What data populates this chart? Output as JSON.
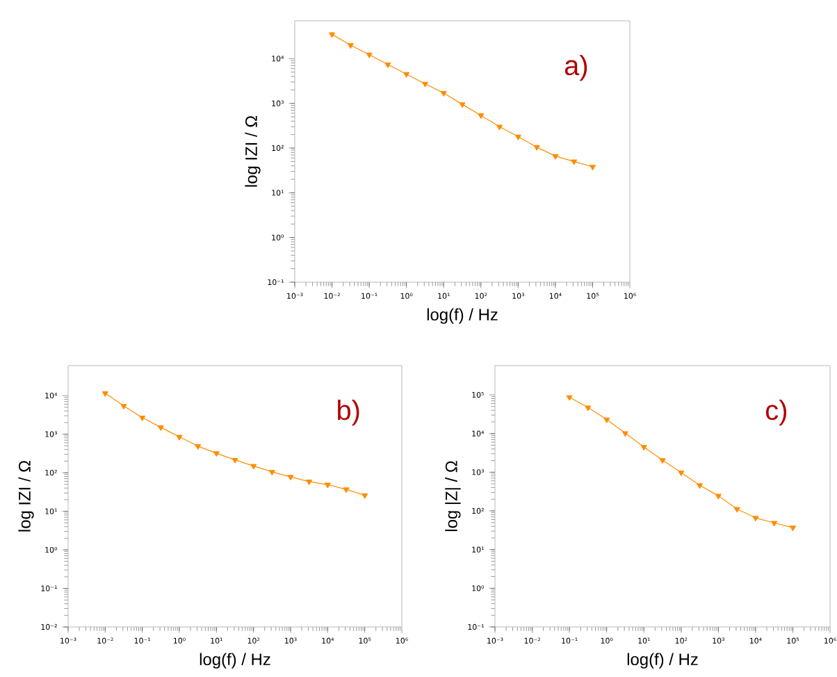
{
  "chart_data": [
    {
      "type": "line",
      "xlabel": "log(f)  / Hz",
      "ylabel": "log IZI / Ω",
      "annotations": [
        "a)"
      ],
      "log": "xy",
      "marker": "triangle",
      "line_style": "solid",
      "xlim": [
        0.001,
        1000000
      ],
      "ylim": [
        0.1,
        70000
      ],
      "xticks": [
        {
          "value": 0.001,
          "label": "10⁻³"
        },
        {
          "value": 0.01,
          "label": "10⁻²"
        },
        {
          "value": 0.1,
          "label": "10⁻¹"
        },
        {
          "value": 1,
          "label": "10⁰"
        },
        {
          "value": 10,
          "label": "10¹"
        },
        {
          "value": 100,
          "label": "10²"
        },
        {
          "value": 1000,
          "label": "10³"
        },
        {
          "value": 10000,
          "label": "10⁴"
        },
        {
          "value": 100000,
          "label": "10⁵"
        },
        {
          "value": 1000000,
          "label": "10⁶"
        }
      ],
      "yticks": [
        {
          "value": 0.1,
          "label": "10⁻¹"
        },
        {
          "value": 1,
          "label": "10⁰"
        },
        {
          "value": 10,
          "label": "10¹"
        },
        {
          "value": 100,
          "label": "10²"
        },
        {
          "value": 1000,
          "label": "10³"
        },
        {
          "value": 10000,
          "label": "10⁴"
        }
      ],
      "x": [
        0.01,
        0.0316,
        0.1,
        0.316,
        1,
        3.16,
        10,
        31.6,
        100,
        316,
        1000,
        3160,
        10000,
        31600,
        100000
      ],
      "series": [
        {
          "color": "#ff8c00",
          "values": [
            35000,
            20000,
            12300,
            7400,
            4500,
            2750,
            1700,
            950,
            540,
            300,
            180,
            105,
            66,
            50,
            38
          ]
        }
      ]
    },
    {
      "type": "line",
      "xlabel": "log(f)  / Hz",
      "ylabel": "log IZI / Ω",
      "annotations": [
        "b)"
      ],
      "log": "xy",
      "marker": "triangle",
      "line_style": "solid",
      "xlim": [
        0.001,
        1000000
      ],
      "ylim": [
        0.01,
        60000
      ],
      "xticks": [
        {
          "value": 0.001,
          "label": "10⁻³"
        },
        {
          "value": 0.01,
          "label": "10⁻²"
        },
        {
          "value": 0.1,
          "label": "10⁻¹"
        },
        {
          "value": 1,
          "label": "10⁰"
        },
        {
          "value": 10,
          "label": "10¹"
        },
        {
          "value": 100,
          "label": "10²"
        },
        {
          "value": 1000,
          "label": "10³"
        },
        {
          "value": 10000,
          "label": "10⁴"
        },
        {
          "value": 100000,
          "label": "10⁵"
        },
        {
          "value": 1000000,
          "label": "10⁶"
        }
      ],
      "yticks": [
        {
          "value": 0.01,
          "label": "10⁻²"
        },
        {
          "value": 0.1,
          "label": "10⁻¹"
        },
        {
          "value": 1,
          "label": "10⁰"
        },
        {
          "value": 10,
          "label": "10¹"
        },
        {
          "value": 100,
          "label": "10²"
        },
        {
          "value": 1000,
          "label": "10³"
        },
        {
          "value": 10000,
          "label": "10⁴"
        }
      ],
      "x": [
        0.01,
        0.0316,
        0.1,
        0.316,
        1,
        3.16,
        10,
        31.6,
        100,
        316,
        1000,
        3160,
        10000,
        31600,
        100000
      ],
      "series": [
        {
          "color": "#ff8c00",
          "values": [
            11500,
            5400,
            2700,
            1500,
            850,
            490,
            320,
            215,
            150,
            105,
            78,
            59,
            49,
            37,
            26
          ]
        }
      ]
    },
    {
      "type": "line",
      "xlabel": "log(f)  / Hz",
      "ylabel": "log |Z| / Ω",
      "annotations": [
        "c)"
      ],
      "log": "xy",
      "marker": "triangle",
      "line_style": "solid",
      "xlim": [
        0.001,
        1000000
      ],
      "ylim": [
        0.1,
        570000
      ],
      "xticks": [
        {
          "value": 0.001,
          "label": "10⁻³"
        },
        {
          "value": 0.01,
          "label": "10⁻²"
        },
        {
          "value": 0.1,
          "label": "10⁻¹"
        },
        {
          "value": 1,
          "label": "10⁰"
        },
        {
          "value": 10,
          "label": "10¹"
        },
        {
          "value": 100,
          "label": "10²"
        },
        {
          "value": 1000,
          "label": "10³"
        },
        {
          "value": 10000,
          "label": "10⁴"
        },
        {
          "value": 100000,
          "label": "10⁵"
        },
        {
          "value": 1000000,
          "label": "10⁶"
        }
      ],
      "yticks": [
        {
          "value": 0.1,
          "label": "10⁻¹"
        },
        {
          "value": 1,
          "label": "10⁰"
        },
        {
          "value": 10,
          "label": "10¹"
        },
        {
          "value": 100,
          "label": "10²"
        },
        {
          "value": 1000,
          "label": "10³"
        },
        {
          "value": 10000,
          "label": "10⁴"
        },
        {
          "value": 100000,
          "label": "10⁵"
        }
      ],
      "x": [
        0.1,
        0.316,
        1,
        3.16,
        10,
        31.6,
        100,
        316,
        1000,
        3160,
        10000,
        31600,
        100000
      ],
      "series": [
        {
          "color": "#ff8c00",
          "values": [
            87000,
            47000,
            23000,
            10200,
            4500,
            2050,
            980,
            460,
            245,
            112,
            66,
            49,
            37
          ]
        }
      ]
    }
  ]
}
